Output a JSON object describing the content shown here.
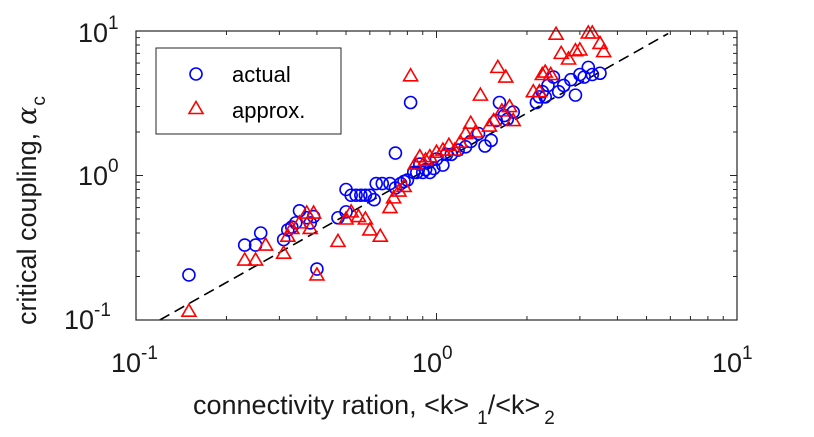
{
  "chart_data": {
    "type": "scatter",
    "xscale": "log",
    "yscale": "log",
    "xlim": [
      0.1,
      10
    ],
    "ylim": [
      0.1,
      10
    ],
    "xticks": [
      {
        "base": "10",
        "exp": "-1"
      },
      {
        "base": "10",
        "exp": "0"
      },
      {
        "base": "10",
        "exp": "1"
      }
    ],
    "yticks": [
      {
        "base": "10",
        "exp": "-1"
      },
      {
        "base": "10",
        "exp": "0"
      },
      {
        "base": "10",
        "exp": "1"
      }
    ],
    "xlabel": {
      "main": "connectivity ration, <k>",
      "sub1": "1",
      "mid": "/<k>",
      "sub2": "2"
    },
    "ylabel": {
      "main": "critical coupling,",
      "symbol": "α",
      "sub": "c"
    },
    "legend": {
      "position": "top-left",
      "entries": [
        "actual",
        "approx."
      ]
    },
    "colors": {
      "actual": "#0000ff",
      "approx": "#ff0000",
      "fit": "#000000"
    },
    "fit_line": {
      "style": "dashed",
      "x": [
        0.12,
        5.9
      ],
      "y": [
        0.1,
        9.6
      ]
    },
    "series": [
      {
        "name": "actual",
        "marker": "circle",
        "points": [
          [
            0.15,
            0.205
          ],
          [
            0.23,
            0.33
          ],
          [
            0.25,
            0.33
          ],
          [
            0.26,
            0.4
          ],
          [
            0.31,
            0.36
          ],
          [
            0.32,
            0.42
          ],
          [
            0.33,
            0.44
          ],
          [
            0.34,
            0.47
          ],
          [
            0.35,
            0.57
          ],
          [
            0.37,
            0.51
          ],
          [
            0.38,
            0.47
          ],
          [
            0.39,
            0.52
          ],
          [
            0.4,
            0.225
          ],
          [
            0.47,
            0.51
          ],
          [
            0.5,
            0.56
          ],
          [
            0.5,
            0.8
          ],
          [
            0.52,
            0.73
          ],
          [
            0.54,
            0.73
          ],
          [
            0.56,
            0.73
          ],
          [
            0.58,
            0.73
          ],
          [
            0.6,
            0.73
          ],
          [
            0.62,
            0.68
          ],
          [
            0.63,
            0.88
          ],
          [
            0.66,
            0.88
          ],
          [
            0.7,
            0.88
          ],
          [
            0.73,
            1.43
          ],
          [
            0.73,
            0.82
          ],
          [
            0.76,
            0.88
          ],
          [
            0.78,
            0.91
          ],
          [
            0.8,
            0.93
          ],
          [
            0.82,
            3.2
          ],
          [
            0.84,
            1.05
          ],
          [
            0.86,
            1.05
          ],
          [
            0.88,
            1.2
          ],
          [
            0.9,
            1.05
          ],
          [
            0.92,
            1.1
          ],
          [
            0.95,
            1.05
          ],
          [
            0.98,
            1.12
          ],
          [
            1.0,
            1.3
          ],
          [
            1.05,
            1.18
          ],
          [
            1.08,
            1.4
          ],
          [
            1.12,
            1.4
          ],
          [
            1.18,
            1.5
          ],
          [
            1.25,
            1.58
          ],
          [
            1.3,
            1.72
          ],
          [
            1.38,
            1.95
          ],
          [
            1.45,
            1.6
          ],
          [
            1.52,
            1.75
          ],
          [
            1.58,
            2.4
          ],
          [
            1.62,
            3.2
          ],
          [
            1.68,
            2.6
          ],
          [
            1.72,
            2.45
          ],
          [
            1.8,
            2.75
          ],
          [
            2.15,
            3.2
          ],
          [
            2.2,
            3.5
          ],
          [
            2.25,
            3.8
          ],
          [
            2.3,
            3.5
          ],
          [
            2.35,
            4.2
          ],
          [
            2.45,
            4.8
          ],
          [
            2.55,
            3.8
          ],
          [
            2.65,
            4.2
          ],
          [
            2.8,
            4.6
          ],
          [
            2.9,
            3.6
          ],
          [
            3.0,
            5.0
          ],
          [
            3.1,
            4.8
          ],
          [
            3.2,
            5.6
          ],
          [
            3.3,
            5.0
          ],
          [
            3.5,
            5.1
          ]
        ]
      },
      {
        "name": "approx.",
        "marker": "triangle",
        "points": [
          [
            0.15,
            0.115
          ],
          [
            0.23,
            0.26
          ],
          [
            0.25,
            0.26
          ],
          [
            0.27,
            0.33
          ],
          [
            0.31,
            0.29
          ],
          [
            0.32,
            0.38
          ],
          [
            0.33,
            0.43
          ],
          [
            0.35,
            0.47
          ],
          [
            0.37,
            0.55
          ],
          [
            0.38,
            0.43
          ],
          [
            0.39,
            0.55
          ],
          [
            0.4,
            0.205
          ],
          [
            0.47,
            0.35
          ],
          [
            0.5,
            0.5
          ],
          [
            0.52,
            0.56
          ],
          [
            0.55,
            0.52
          ],
          [
            0.58,
            0.5
          ],
          [
            0.6,
            0.42
          ],
          [
            0.65,
            0.38
          ],
          [
            0.7,
            0.6
          ],
          [
            0.72,
            0.7
          ],
          [
            0.75,
            0.78
          ],
          [
            0.78,
            0.84
          ],
          [
            0.82,
            4.9
          ],
          [
            0.85,
            1.2
          ],
          [
            0.88,
            1.35
          ],
          [
            0.92,
            1.28
          ],
          [
            0.95,
            1.35
          ],
          [
            1.0,
            1.45
          ],
          [
            1.05,
            1.5
          ],
          [
            1.1,
            1.62
          ],
          [
            1.15,
            1.5
          ],
          [
            1.2,
            1.7
          ],
          [
            1.25,
            1.95
          ],
          [
            1.3,
            2.3
          ],
          [
            1.35,
            2.0
          ],
          [
            1.4,
            3.6
          ],
          [
            1.5,
            2.2
          ],
          [
            1.55,
            2.4
          ],
          [
            1.6,
            5.6
          ],
          [
            1.65,
            2.8
          ],
          [
            1.7,
            4.8
          ],
          [
            1.75,
            3.0
          ],
          [
            1.8,
            2.4
          ],
          [
            2.1,
            3.8
          ],
          [
            2.2,
            3.8
          ],
          [
            2.25,
            5.0
          ],
          [
            2.3,
            5.2
          ],
          [
            2.4,
            5.0
          ],
          [
            2.5,
            9.5
          ],
          [
            2.6,
            7.0
          ],
          [
            2.75,
            6.4
          ],
          [
            2.9,
            7.3
          ],
          [
            3.0,
            7.4
          ],
          [
            3.2,
            10.3
          ],
          [
            3.3,
            10.5
          ],
          [
            3.5,
            8.2
          ],
          [
            3.6,
            7.2
          ]
        ]
      }
    ]
  }
}
